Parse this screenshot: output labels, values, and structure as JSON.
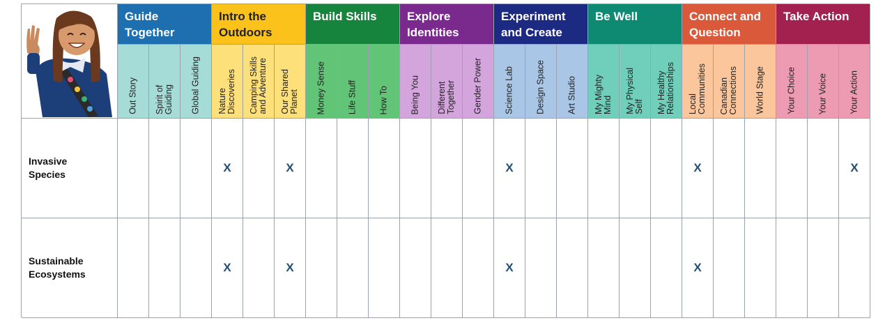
{
  "categories": [
    {
      "label": "Guide\nTogether",
      "color": "#1e6fb0",
      "sub_color": "#a6dcd8",
      "subs": [
        "Out Story",
        "Spirit of\nGuiding",
        "Global Guiding"
      ]
    },
    {
      "label": "Intro the\nOutdoors",
      "color": "#fbc21b",
      "sub_color": "#fde07a",
      "subs": [
        "Nature\nDiscoveries",
        "Camping Skills\nand Adventure",
        "Our Shared\nPlanet"
      ]
    },
    {
      "label": "Build Skills",
      "color": "#16843c",
      "sub_color": "#62c477",
      "subs": [
        "Money Sense",
        "Life Stuff",
        "How To"
      ]
    },
    {
      "label": "Explore\nIdentities",
      "color": "#7a2a8d",
      "sub_color": "#d3a5dc",
      "subs": [
        "Being You",
        "Different\nTogether",
        "Gender Power"
      ]
    },
    {
      "label": "Experiment\nand Create",
      "color": "#1d2a82",
      "sub_color": "#aac6e6",
      "subs": [
        "Science Lab",
        "Design Space",
        "Art Studio"
      ]
    },
    {
      "label": "Be Well",
      "color": "#0e8a72",
      "sub_color": "#6fcfbb",
      "subs": [
        "My Mighty\nMind",
        "My Physical\nSelf",
        "My Healthy\nRelationships"
      ]
    },
    {
      "label": "Connect and\nQuestion",
      "color": "#d9593a",
      "sub_color": "#fcc69c",
      "subs": [
        "Local\nCommunities",
        "Canadian\nConnections",
        "World Stage"
      ]
    },
    {
      "label": "Take Action",
      "color": "#a3214e",
      "sub_color": "#ec9bb2",
      "subs": [
        "Your Choice",
        "Your Voice",
        "Your Action"
      ]
    }
  ],
  "rows": [
    {
      "label": "Invasive\nSpecies",
      "marks": [
        3,
        5,
        12,
        18,
        23
      ]
    },
    {
      "label": "Sustainable\nEcosystems",
      "marks": [
        3,
        5,
        12,
        18
      ]
    }
  ],
  "mark_text": "X"
}
